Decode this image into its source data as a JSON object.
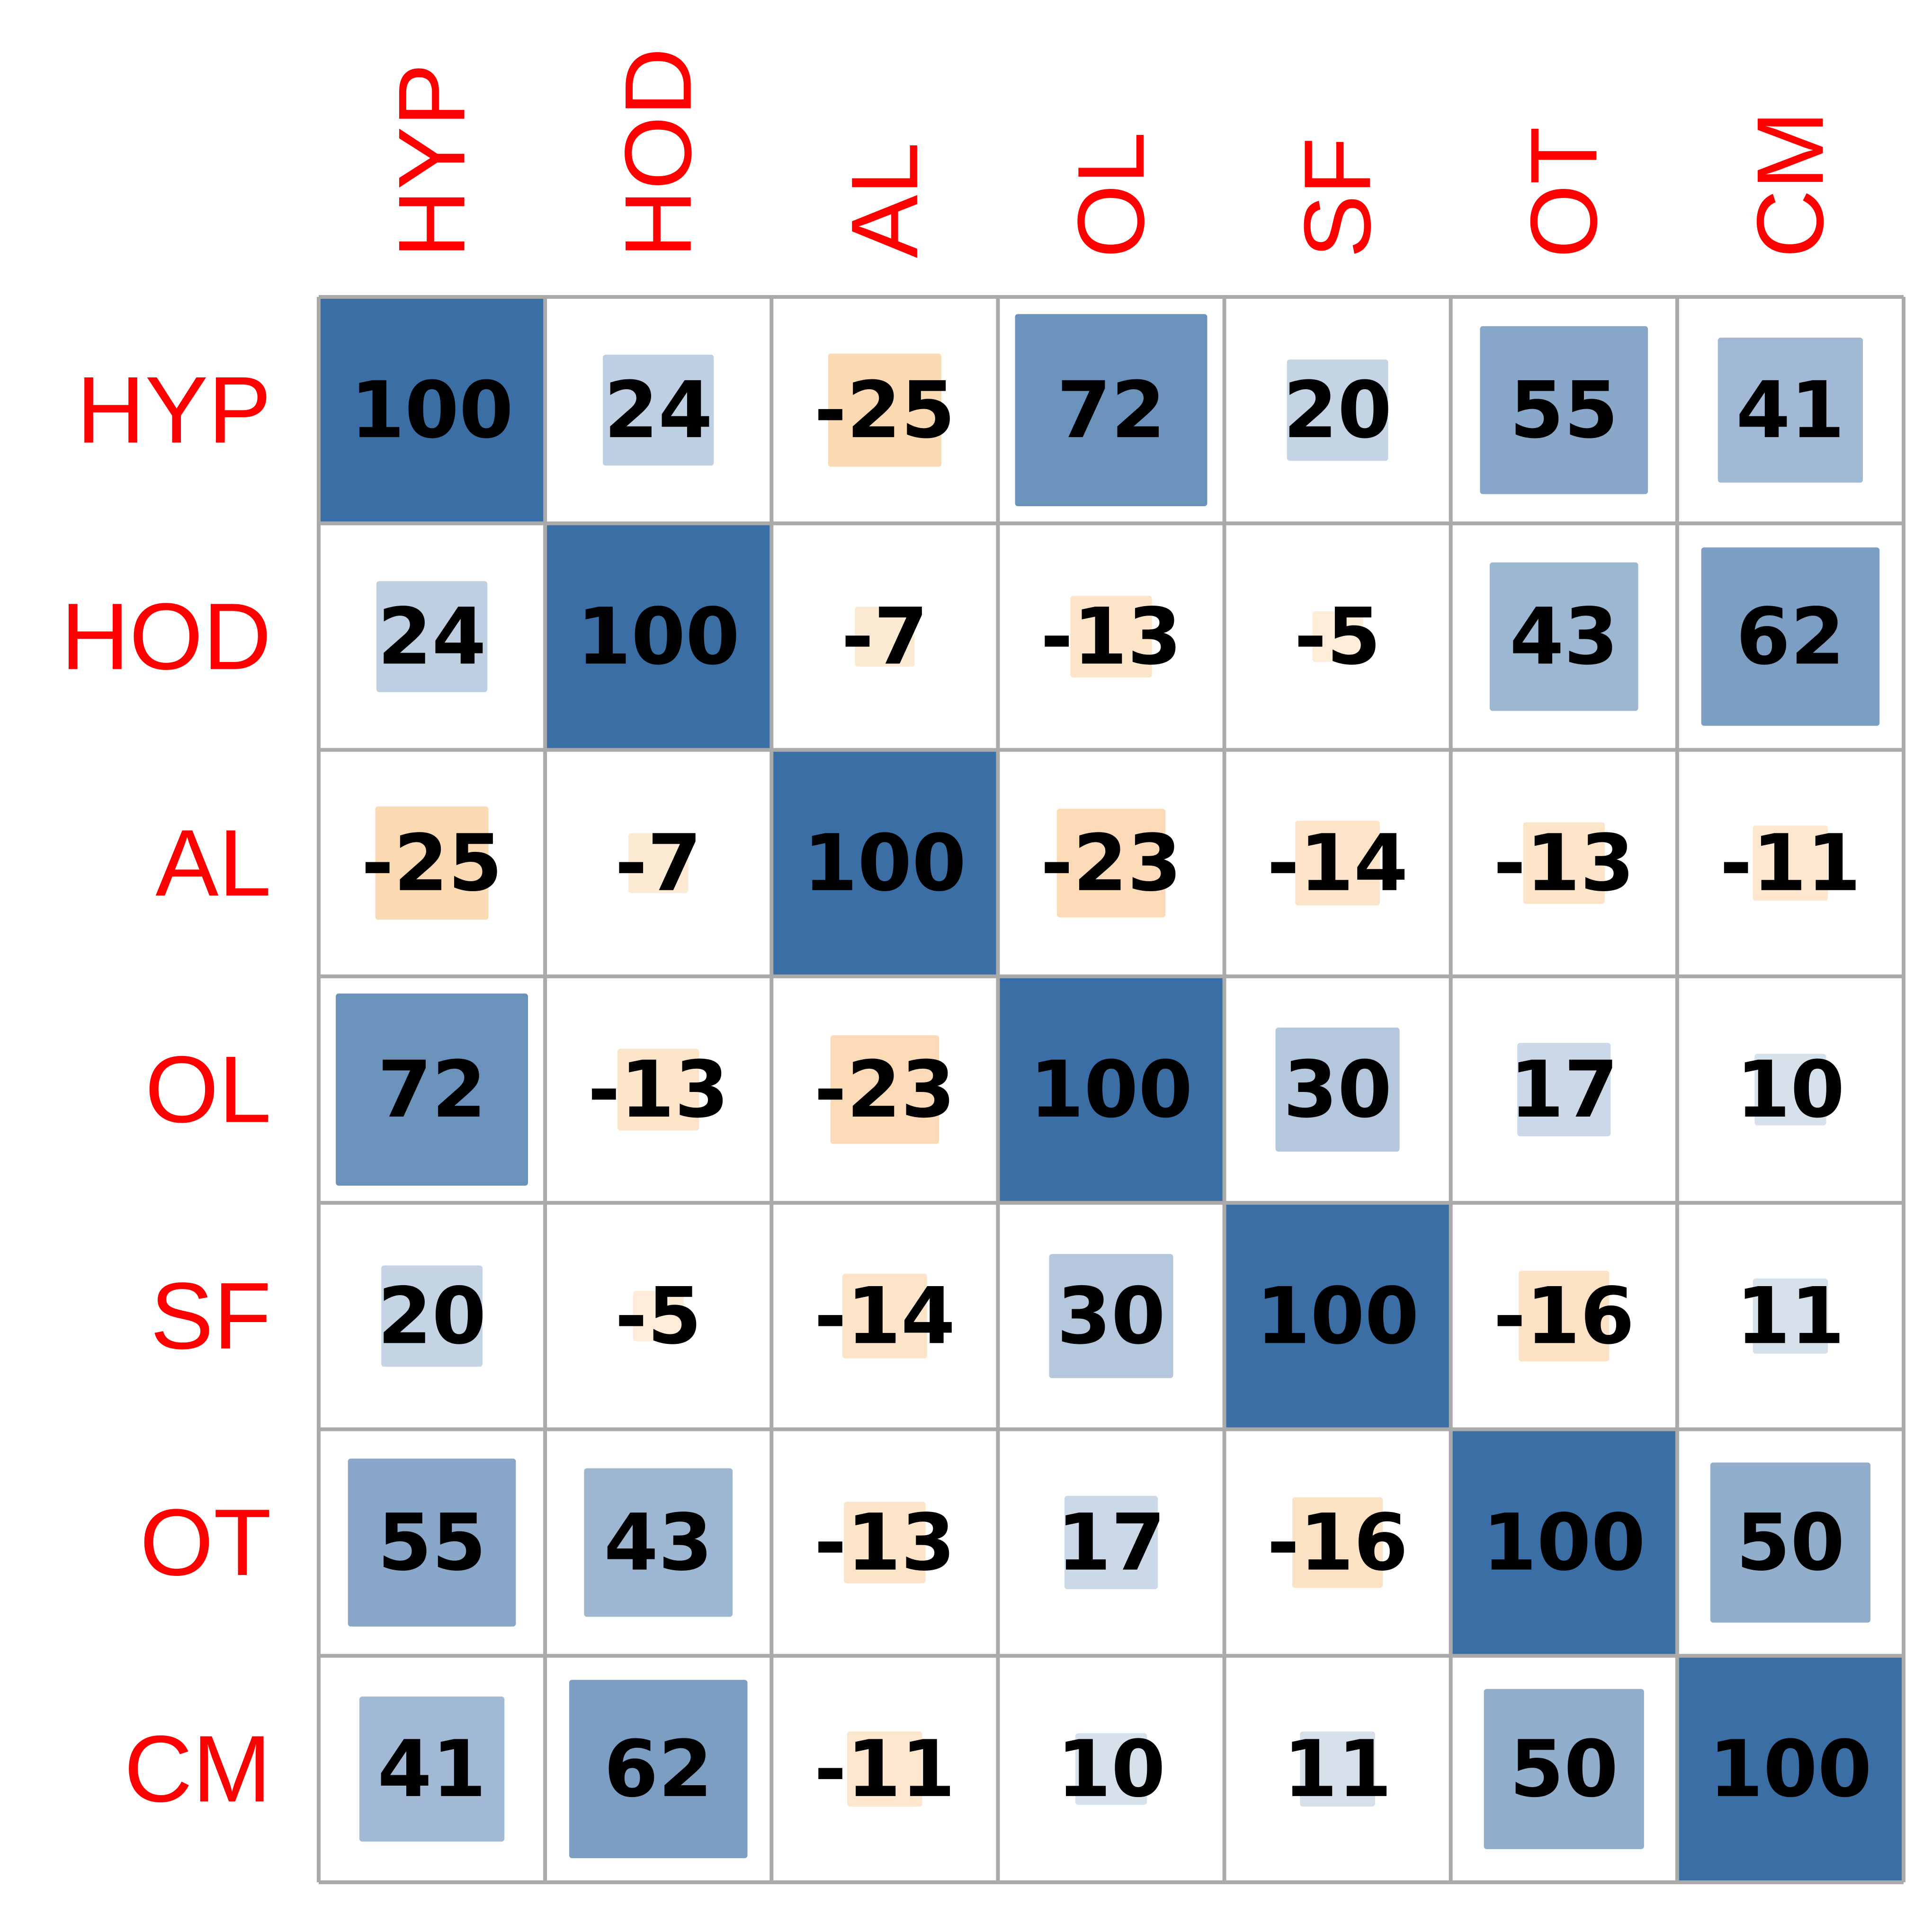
{
  "chart_data": {
    "type": "heatmap",
    "subtype": "correlation-matrix",
    "rows": [
      "HYP",
      "HOD",
      "AL",
      "OL",
      "SF",
      "OT",
      "CM"
    ],
    "columns": [
      "HYP",
      "HOD",
      "AL",
      "OL",
      "SF",
      "OT",
      "CM"
    ],
    "values": [
      [
        100,
        24,
        -25,
        72,
        20,
        55,
        41
      ],
      [
        24,
        100,
        -7,
        -13,
        -5,
        43,
        62
      ],
      [
        -25,
        -7,
        100,
        -23,
        -14,
        -13,
        -11
      ],
      [
        72,
        -13,
        -23,
        100,
        30,
        17,
        10
      ],
      [
        20,
        -5,
        -14,
        30,
        100,
        -16,
        11
      ],
      [
        55,
        43,
        -13,
        17,
        -16,
        100,
        50
      ],
      [
        41,
        62,
        -11,
        10,
        11,
        50,
        100
      ]
    ],
    "value_range": [
      -100,
      100
    ],
    "colors": {
      "positive": "#3b6ea5",
      "negative": "#f9c58a",
      "label_text": "#ff0000",
      "value_text": "#000000",
      "grid": "#aaaaaa"
    },
    "square_size_scales_with_magnitude": true,
    "grid": true,
    "legend": "none"
  }
}
